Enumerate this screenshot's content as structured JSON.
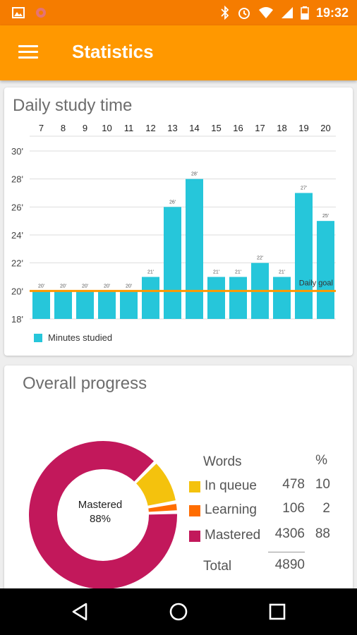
{
  "statusbar": {
    "time": "19:32"
  },
  "toolbar": {
    "title": "Statistics"
  },
  "daily": {
    "title": "Daily study time",
    "legend": "Minutes studied",
    "goal_label": "Daily goal",
    "goal_color": "#ff9800",
    "bar_color": "#26c6da"
  },
  "chart_data": {
    "type": "bar",
    "title": "Daily study time",
    "categories": [
      "7",
      "8",
      "9",
      "10",
      "11",
      "12",
      "13",
      "14",
      "15",
      "16",
      "17",
      "18",
      "19",
      "20"
    ],
    "series": [
      {
        "name": "Minutes studied",
        "values": [
          20,
          20,
          20,
          20,
          20,
          21,
          26,
          28,
          21,
          21,
          22,
          21,
          27,
          25
        ]
      }
    ],
    "value_labels": [
      "20'",
      "20'",
      "20'",
      "20'",
      "20'",
      "21'",
      "26'",
      "28'",
      "21'",
      "21'",
      "22'",
      "21'",
      "27'",
      "25'"
    ],
    "y_ticks": [
      "18'",
      "20'",
      "22'",
      "24'",
      "26'",
      "28'",
      "30'"
    ],
    "ylim": [
      18,
      30
    ],
    "goal": 20,
    "grid": true,
    "legend_position": "bottom-left"
  },
  "progress": {
    "title": "Overall progress",
    "center_label": "Mastered",
    "center_value": "88%",
    "header_words": "Words",
    "header_pct": "%",
    "rows": [
      {
        "label": "In queue",
        "count": "478",
        "pct": "10",
        "color": "#f4c20d"
      },
      {
        "label": "Learning",
        "count": "106",
        "pct": "2",
        "color": "#ff6d00"
      },
      {
        "label": "Mastered",
        "count": "4306",
        "pct": "88",
        "color": "#c2185b"
      }
    ],
    "total_label": "Total",
    "total_value": "4890"
  }
}
